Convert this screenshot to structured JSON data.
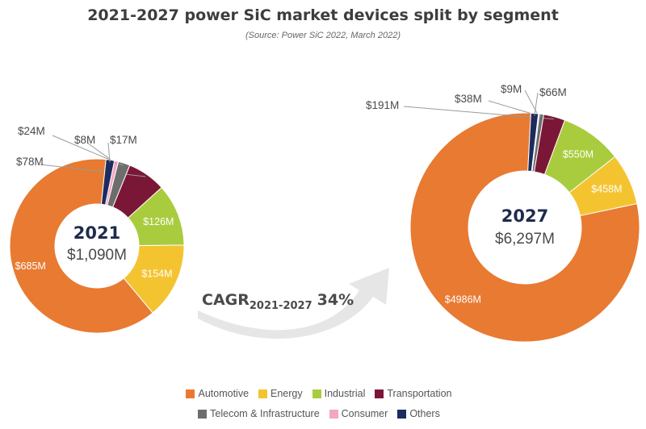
{
  "title": "2021-2027 power SiC market devices split by segment",
  "subtitle": "(Source: Power SiC 2022, March 2022)",
  "cagr": {
    "label": "CAGR",
    "period": "2021-2027",
    "value": "34%"
  },
  "colors": {
    "Automotive": "#e87a32",
    "Energy": "#f4c430",
    "Industrial": "#a9cc3e",
    "Transportation": "#7b1736",
    "Telecom & Infrastructure": "#6d6d6d",
    "Consumer": "#f4a6c3",
    "Others": "#1d2b5e"
  },
  "legend": {
    "row1": [
      "Automotive",
      "Energy",
      "Industrial",
      "Transportation"
    ],
    "row2": [
      "Telecom & Infrastructure",
      "Consumer",
      "Others"
    ]
  },
  "chart_data": [
    {
      "type": "pie",
      "center_year": "2021",
      "center_total": "$1,090M",
      "categories": [
        "Automotive",
        "Energy",
        "Industrial",
        "Transportation",
        "Telecom & Infrastructure",
        "Consumer",
        "Others"
      ],
      "values": [
        685,
        154,
        126,
        78,
        24,
        8,
        17
      ],
      "labels": [
        "$685M",
        "$154M",
        "$126M",
        "$78M",
        "$24M",
        "$8M",
        "$17M"
      ]
    },
    {
      "type": "pie",
      "center_year": "2027",
      "center_total": "$6,297M",
      "categories": [
        "Automotive",
        "Energy",
        "Industrial",
        "Transportation",
        "Telecom & Infrastructure",
        "Consumer",
        "Others"
      ],
      "values": [
        4986,
        458,
        550,
        191,
        38,
        9,
        66
      ],
      "labels": [
        "$4986M",
        "$458M",
        "$550M",
        "$191M",
        "$38M",
        "$9M",
        "$66M"
      ]
    }
  ]
}
